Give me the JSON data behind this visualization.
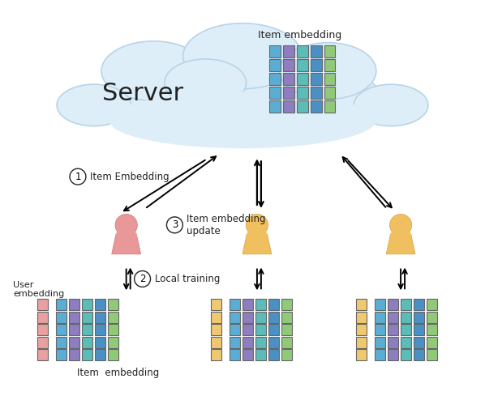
{
  "bg_color": "#ffffff",
  "cloud_color": "#ddeef8",
  "cloud_edge_color": "#b8d4e8",
  "server_text": "Server",
  "item_emb_text_cloud": "Item embedding",
  "item_emb_text_bottom": "Item  embedding",
  "user_emb_text": "User\nembedding",
  "server_col_colors": [
    "#5badd4",
    "#8e7dbf",
    "#5bbcb8",
    "#4a90c4",
    "#90c978"
  ],
  "item_col_colors": [
    "#5badd4",
    "#8e7dbf",
    "#5bbcb8",
    "#4a90c4",
    "#90c978"
  ],
  "red_user_col": "#e8a0a0",
  "yellow_user_col": "#f0c870",
  "person_red": "#e89898",
  "person_red_edge": "#d07070",
  "person_yellow": "#f0c060",
  "person_yellow_edge": "#d8a040",
  "arrow_color": "#222222",
  "label_color": "#222222",
  "circle_bg": "#ffffff",
  "circle_edge": "#222222"
}
